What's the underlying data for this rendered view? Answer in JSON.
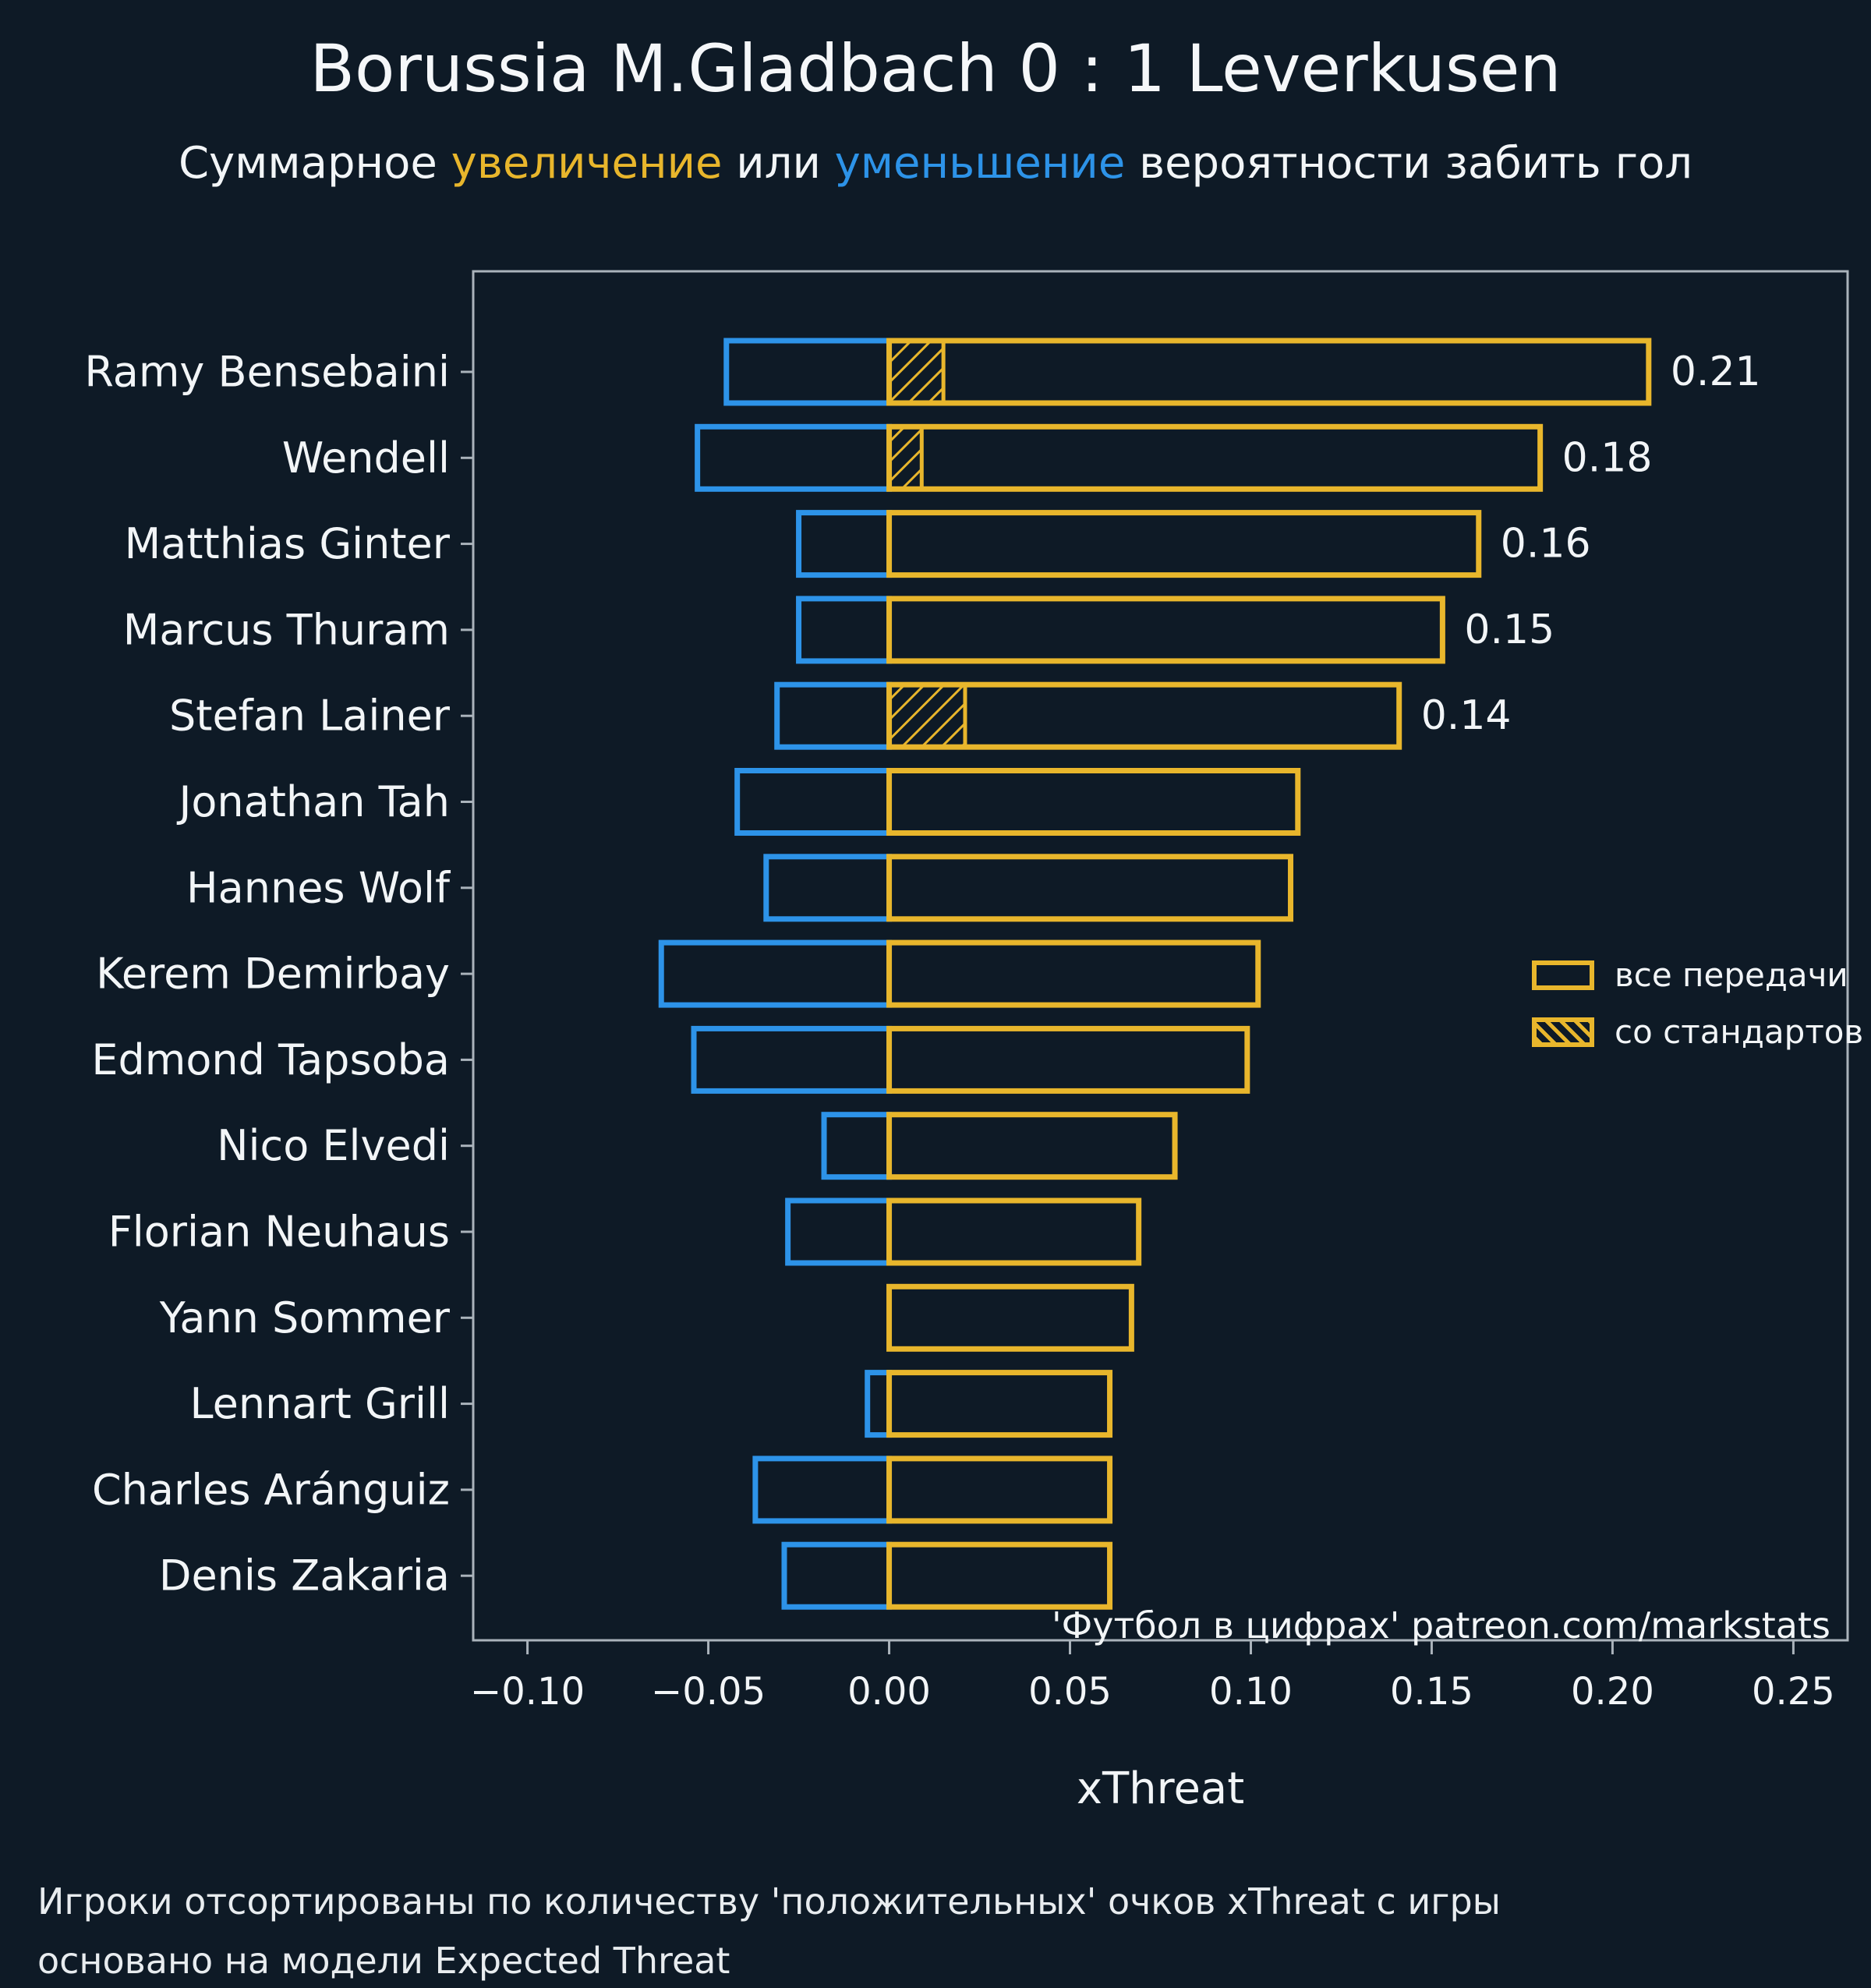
{
  "title": "Borussia M.Gladbach 0 : 1 Leverkusen",
  "subtitle": {
    "part1": "Суммарное ",
    "increase": "увеличение",
    "part2": " или ",
    "decrease": "уменьшение",
    "part3": " вероятности забить гол"
  },
  "colors": {
    "background": "#0e1a26",
    "positive": "#e8b62c",
    "negative": "#2d93e8",
    "text": "#f2f5f7",
    "axis": "#aab3bb"
  },
  "legend": [
    {
      "label": "все передачи",
      "style": "solid-outline"
    },
    {
      "label": "со стандартов",
      "style": "hatched"
    }
  ],
  "annotation": "'Футбол в цифрах' patreon.com/markstats",
  "footer": {
    "line1": "Игроки отсортированы по количеству 'положительных' очков xThreat с игры",
    "line2": "основано на модели Expected Threat"
  },
  "chart_data": {
    "type": "bar",
    "orientation": "horizontal",
    "title": "Borussia M.Gladbach 0 : 1 Leverkusen",
    "xlabel": "xThreat",
    "xlim": [
      -0.115,
      0.265
    ],
    "grid": false,
    "legend_position": "right-middle",
    "x_ticks": [
      {
        "v": -0.1,
        "label": "−0.10"
      },
      {
        "v": -0.05,
        "label": "−0.05"
      },
      {
        "v": 0.0,
        "label": "0.00"
      },
      {
        "v": 0.05,
        "label": "0.05"
      },
      {
        "v": 0.1,
        "label": "0.10"
      },
      {
        "v": 0.15,
        "label": "0.15"
      },
      {
        "v": 0.2,
        "label": "0.20"
      },
      {
        "v": 0.25,
        "label": "0.25"
      }
    ],
    "series_meaning": {
      "positive": "суммарное увеличение xThreat (все передачи)",
      "negative": "суммарное уменьшение xThreat",
      "standard": "xThreat со стандартов"
    },
    "players": [
      {
        "name": "Ramy Bensebaini",
        "positive": 0.21,
        "negative": -0.045,
        "standard": 0.015,
        "value_label": "0.21"
      },
      {
        "name": "Wendell",
        "positive": 0.18,
        "negative": -0.053,
        "standard": 0.009,
        "value_label": "0.18"
      },
      {
        "name": "Matthias Ginter",
        "positive": 0.163,
        "negative": -0.025,
        "standard": 0,
        "value_label": "0.16"
      },
      {
        "name": "Marcus Thuram",
        "positive": 0.153,
        "negative": -0.025,
        "standard": 0,
        "value_label": "0.15"
      },
      {
        "name": "Stefan Lainer",
        "positive": 0.141,
        "negative": -0.031,
        "standard": 0.021,
        "value_label": "0.14"
      },
      {
        "name": "Jonathan Tah",
        "positive": 0.113,
        "negative": -0.042,
        "standard": 0,
        "value_label": ""
      },
      {
        "name": "Hannes Wolf",
        "positive": 0.111,
        "negative": -0.034,
        "standard": 0,
        "value_label": ""
      },
      {
        "name": "Kerem Demirbay",
        "positive": 0.102,
        "negative": -0.063,
        "standard": 0,
        "value_label": ""
      },
      {
        "name": "Edmond Tapsoba",
        "positive": 0.099,
        "negative": -0.054,
        "standard": 0,
        "value_label": ""
      },
      {
        "name": "Nico Elvedi",
        "positive": 0.079,
        "negative": -0.018,
        "standard": 0,
        "value_label": ""
      },
      {
        "name": "Florian Neuhaus",
        "positive": 0.069,
        "negative": -0.028,
        "standard": 0,
        "value_label": ""
      },
      {
        "name": "Yann Sommer",
        "positive": 0.067,
        "negative": 0,
        "standard": 0,
        "value_label": ""
      },
      {
        "name": "Lennart Grill",
        "positive": 0.061,
        "negative": -0.006,
        "standard": 0,
        "value_label": ""
      },
      {
        "name": "Charles Aránguiz",
        "positive": 0.061,
        "negative": -0.037,
        "standard": 0,
        "value_label": ""
      },
      {
        "name": "Denis Zakaria",
        "positive": 0.061,
        "negative": -0.029,
        "standard": 0,
        "value_label": ""
      }
    ]
  }
}
